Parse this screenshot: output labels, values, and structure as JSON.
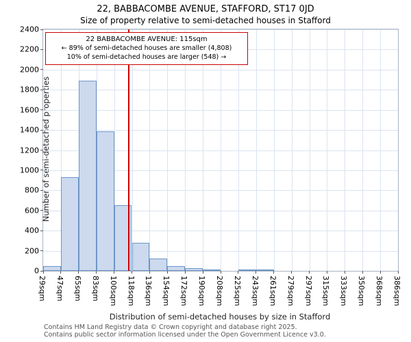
{
  "page": {
    "title": "22, BABBACOMBE AVENUE, STAFFORD, ST17 0JD",
    "subtitle": "Size of property relative to semi-detached houses in Stafford"
  },
  "footer": {
    "line1": "Contains HM Land Registry data © Crown copyright and database right 2025.",
    "line2": "Contains public sector information licensed under the Open Government Licence v3.0."
  },
  "chart_data": {
    "type": "bar",
    "title": "22, BABBACOMBE AVENUE, STAFFORD, ST17 0JD",
    "subtitle": "Size of property relative to semi-detached houses in Stafford",
    "xlabel": "Distribution of semi-detached houses by size in Stafford",
    "ylabel": "Number of semi-detached properties",
    "bin_edges_sqm": [
      29,
      47,
      65,
      83,
      100,
      118,
      136,
      154,
      172,
      190,
      208,
      225,
      243,
      261,
      279,
      297,
      315,
      333,
      350,
      368,
      386
    ],
    "tick_labels": [
      "29sqm",
      "47sqm",
      "65sqm",
      "83sqm",
      "100sqm",
      "118sqm",
      "136sqm",
      "154sqm",
      "172sqm",
      "190sqm",
      "208sqm",
      "225sqm",
      "243sqm",
      "261sqm",
      "279sqm",
      "297sqm",
      "315sqm",
      "333sqm",
      "350sqm",
      "368sqm",
      "386sqm"
    ],
    "values": [
      50,
      930,
      1890,
      1390,
      650,
      280,
      120,
      50,
      30,
      15,
      0,
      10,
      10,
      0,
      0,
      0,
      0,
      0,
      0,
      0
    ],
    "ylim": [
      0,
      2400
    ],
    "ytick_step": 200,
    "grid": true,
    "legend": "none",
    "marker": {
      "value_sqm": 115,
      "label": "22 BABBACOMBE AVENUE: 115sqm",
      "smaller_text": "← 89% of semi-detached houses are smaller (4,808)",
      "larger_text": "10% of semi-detached houses are larger (548) →",
      "color": "#cc0000"
    },
    "colors": {
      "bar_fill": "#ccd9ee",
      "bar_border": "#6d96c8",
      "grid": "#dbe3f0",
      "marker": "#cc0000"
    }
  }
}
